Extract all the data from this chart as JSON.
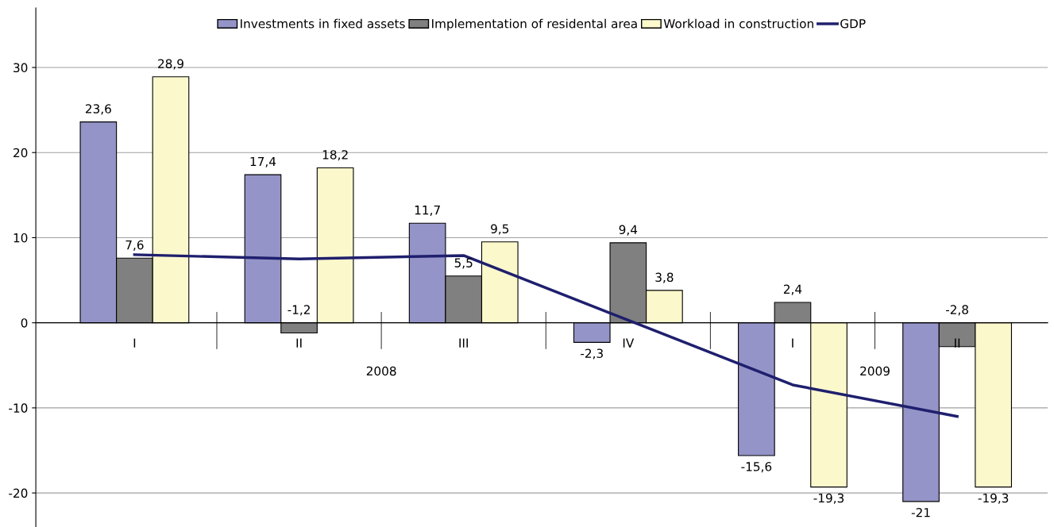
{
  "chart_data": {
    "type": "bar",
    "categories": [
      "I",
      "II",
      "III",
      "IV",
      "I",
      "II"
    ],
    "annotations": [
      "2008",
      "2009"
    ],
    "series": [
      {
        "name": "Investments in fixed assets",
        "color": "#9494c8",
        "values": [
          23.6,
          17.4,
          11.7,
          -2.3,
          -15.6,
          -21
        ],
        "value_labels": [
          "23,6",
          "17,4",
          "11,7",
          "-2,3",
          "-15,6",
          "-21"
        ]
      },
      {
        "name": "Implementation of residental area",
        "color": "#808080",
        "values": [
          7.6,
          -1.2,
          5.5,
          9.4,
          2.4,
          -2.8
        ],
        "value_labels": [
          "7,6",
          "-1,2",
          "5,5",
          "9,4",
          "2,4",
          "-2,8"
        ]
      },
      {
        "name": "Workload in construction",
        "color": "#fbf8cc",
        "values": [
          28.9,
          18.2,
          9.5,
          3.8,
          -19.3,
          -19.3
        ],
        "value_labels": [
          "28,9",
          "18,2",
          "9,5",
          "3,8",
          "-19,3",
          "-19,3"
        ]
      },
      {
        "name": "GDP",
        "type": "line",
        "color": "#1f1f6e",
        "values": [
          8.0,
          7.5,
          7.9,
          0.3,
          -7.3,
          -11
        ]
      }
    ],
    "ylim": [
      -24,
      37
    ],
    "yticks": [
      -20,
      -10,
      0,
      10,
      20,
      30
    ],
    "grid": "y",
    "legend": "top",
    "marker": "none",
    "line_style": "solid"
  }
}
